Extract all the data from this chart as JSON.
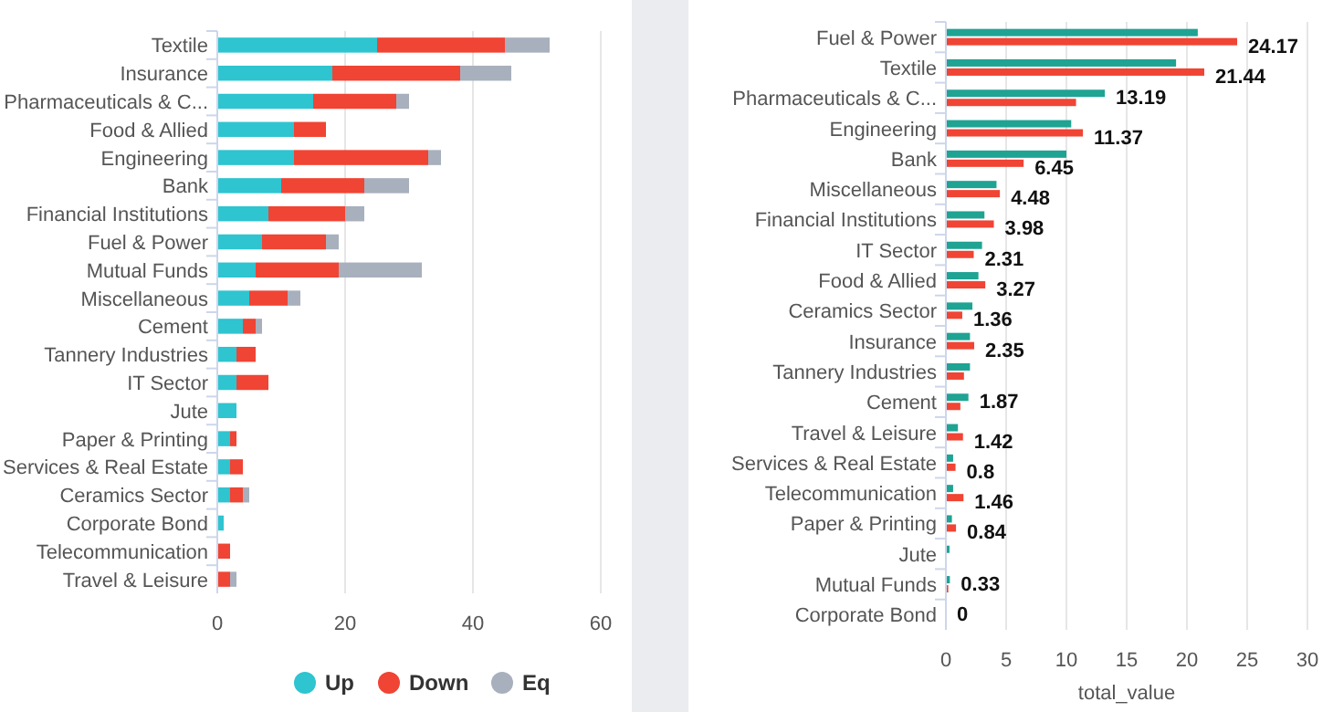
{
  "chart_data": [
    {
      "type": "bar",
      "orientation": "horizontal",
      "stacked": true,
      "categories": [
        "Textile",
        "Insurance",
        "Pharmaceuticals & C...",
        "Food & Allied",
        "Engineering",
        "Bank",
        "Financial Institutions",
        "Fuel & Power",
        "Mutual Funds",
        "Miscellaneous",
        "Cement",
        "Tannery Industries",
        "IT Sector",
        "Jute",
        "Paper & Printing",
        "Services & Real Estate",
        "Ceramics Sector",
        "Corporate Bond",
        "Telecommunication",
        "Travel & Leisure"
      ],
      "series": [
        {
          "name": "Up",
          "color": "#2ec4d0",
          "values": [
            25,
            18,
            15,
            12,
            12,
            10,
            8,
            7,
            6,
            5,
            4,
            3,
            3,
            3,
            2,
            2,
            2,
            1,
            0,
            0
          ]
        },
        {
          "name": "Down",
          "color": "#f04434",
          "values": [
            20,
            20,
            13,
            5,
            21,
            13,
            12,
            10,
            13,
            6,
            2,
            3,
            5,
            0,
            1,
            2,
            2,
            0,
            2,
            2
          ]
        },
        {
          "name": "Eq",
          "color": "#a8b0bd",
          "values": [
            7,
            8,
            2,
            0,
            2,
            7,
            3,
            2,
            13,
            2,
            1,
            0,
            0,
            0,
            0,
            0,
            1,
            0,
            0,
            1
          ]
        }
      ],
      "xlim": [
        0,
        60
      ],
      "xticks": [
        0,
        20,
        40,
        60
      ],
      "grid": "x",
      "legend": "bottom"
    },
    {
      "type": "bar",
      "orientation": "horizontal",
      "categories": [
        "Fuel & Power",
        "Textile",
        "Pharmaceuticals & C...",
        "Engineering",
        "Bank",
        "Miscellaneous",
        "Financial Institutions",
        "IT Sector",
        "Food & Allied",
        "Ceramics Sector",
        "Insurance",
        "Tannery Industries",
        "Cement",
        "Travel & Leisure",
        "Services & Real Estate",
        "Telecommunication",
        "Paper & Printing",
        "Jute",
        "Mutual Funds",
        "Corporate Bond"
      ],
      "series": [
        {
          "color": "#1fa393",
          "values": [
            20.9,
            19.1,
            13.19,
            10.4,
            10,
            4.2,
            3.2,
            3.0,
            2.7,
            2.2,
            2.0,
            2.0,
            1.87,
            1.0,
            0.6,
            0.6,
            0.5,
            0.3,
            0.33,
            0
          ],
          "value_labels": [
            null,
            null,
            "13.19",
            null,
            null,
            null,
            null,
            null,
            null,
            null,
            null,
            null,
            "1.87",
            null,
            null,
            null,
            null,
            null,
            "0.33",
            "0"
          ]
        },
        {
          "color": "#f04434",
          "values": [
            24.17,
            21.44,
            10.8,
            11.37,
            6.45,
            4.48,
            3.98,
            2.31,
            3.27,
            1.36,
            2.35,
            1.5,
            1.2,
            1.42,
            0.8,
            1.46,
            0.84,
            0,
            0.2,
            0
          ],
          "value_labels": [
            "24.17",
            "21.44",
            null,
            "11.37",
            "6.45",
            "4.48",
            "3.98",
            "2.31",
            "3.27",
            "1.36",
            "2.35",
            null,
            null,
            "1.42",
            "0.8",
            "1.46",
            "0.84",
            null,
            null,
            null
          ]
        }
      ],
      "xlim": [
        0,
        30
      ],
      "xticks": [
        0,
        5,
        10,
        15,
        20,
        25,
        30
      ],
      "xlabel": "total_value",
      "grid": "x"
    }
  ]
}
